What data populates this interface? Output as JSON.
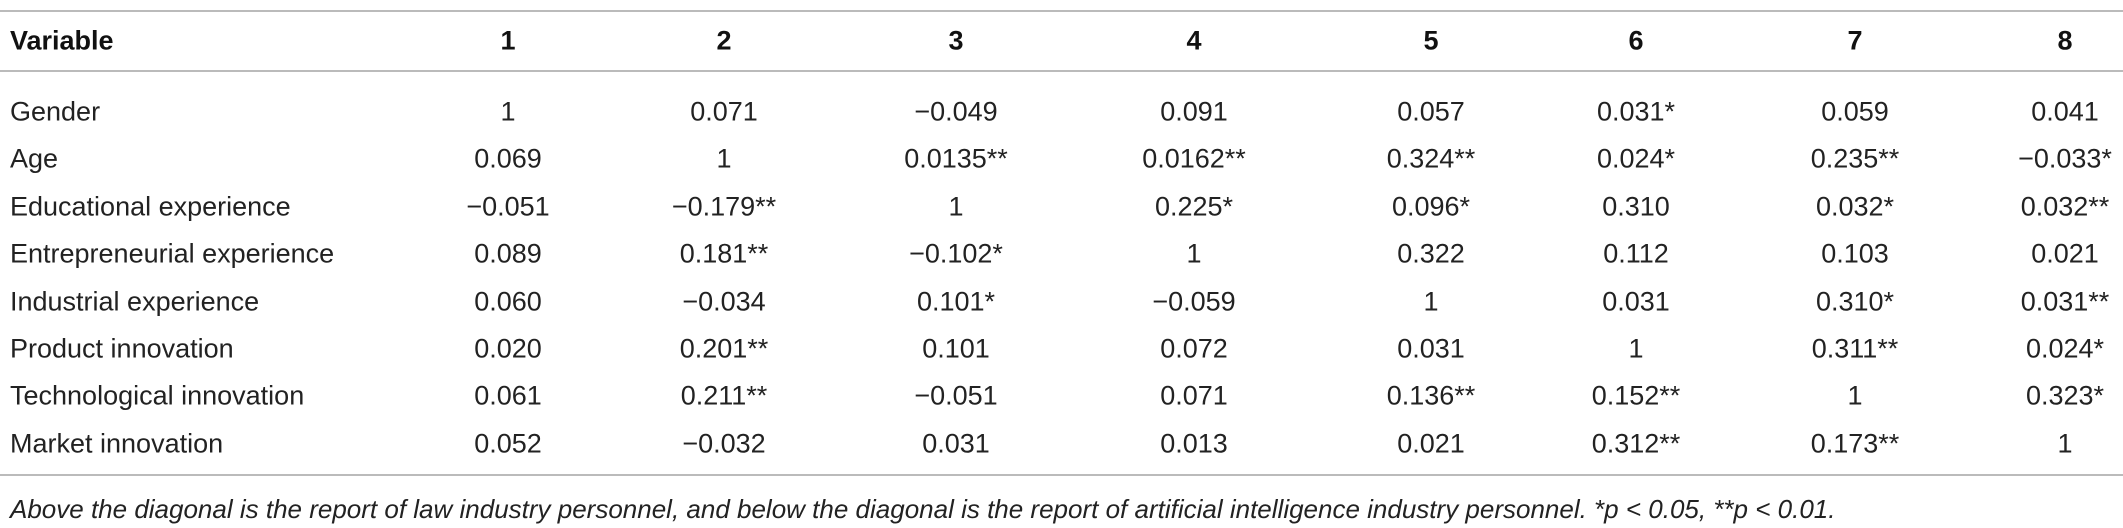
{
  "table": {
    "header": [
      "Variable",
      "1",
      "2",
      "3",
      "4",
      "5",
      "6",
      "7",
      "8"
    ],
    "rows": [
      [
        "Gender",
        "1",
        "0.071",
        "−0.049",
        "0.091",
        "0.057",
        "0.031*",
        "0.059",
        "0.041"
      ],
      [
        "Age",
        "0.069",
        "1",
        "0.0135**",
        "0.0162**",
        "0.324**",
        "0.024*",
        "0.235**",
        "−0.033*"
      ],
      [
        "Educational experience",
        "−0.051",
        "−0.179**",
        "1",
        "0.225*",
        "0.096*",
        "0.310",
        "0.032*",
        "0.032**"
      ],
      [
        "Entrepreneurial experience",
        "0.089",
        "0.181**",
        "−0.102*",
        "1",
        "0.322",
        "0.112",
        "0.103",
        "0.021"
      ],
      [
        "Industrial experience",
        "0.060",
        "−0.034",
        "0.101*",
        "−0.059",
        "1",
        "0.031",
        "0.310*",
        "0.031**"
      ],
      [
        "Product innovation",
        "0.020",
        "0.201**",
        "0.101",
        "0.072",
        "0.031",
        "1",
        "0.311**",
        "0.024*"
      ],
      [
        "Technological innovation",
        "0.061",
        "0.211**",
        "−0.051",
        "0.071",
        "0.136**",
        "0.152**",
        "1",
        "0.323*"
      ],
      [
        "Market innovation",
        "0.052",
        "−0.032",
        "0.031",
        "0.013",
        "0.021",
        "0.312**",
        "0.173**",
        "1"
      ]
    ],
    "footnote": "Above the diagonal is the report of law industry personnel, and below the diagonal is the report of artificial intelligence industry personnel. *p < 0.05, **p < 0.01."
  }
}
